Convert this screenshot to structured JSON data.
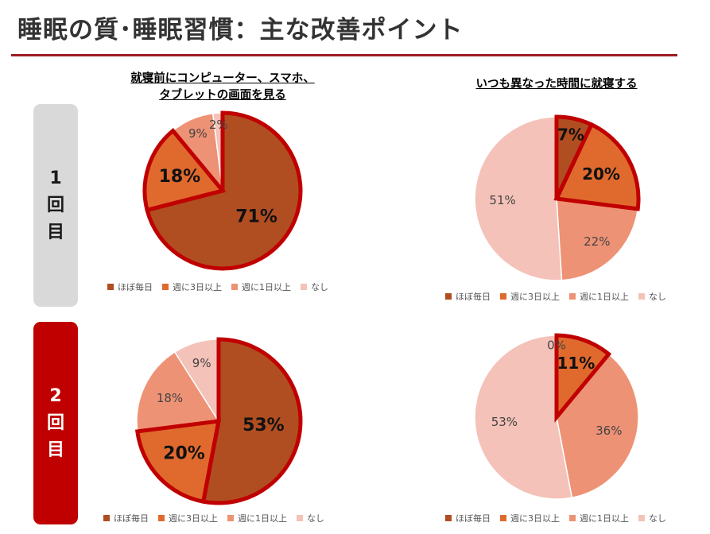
{
  "page": {
    "title": "睡眠の質･睡眠習慣：主な改善ポイント",
    "rounds": [
      {
        "l1": "1",
        "l2": "回",
        "l3": "目"
      },
      {
        "l1": "2",
        "l2": "回",
        "l3": "目"
      }
    ]
  },
  "colors": {
    "category_colors": [
      "#b04e22",
      "#e06a2e",
      "#ee9275",
      "#f4c2b8"
    ],
    "highlight_outline": "#c00000",
    "round1_badge": "#d9d9d9",
    "round2_badge": "#c00000"
  },
  "chart_titles": {
    "left_line1": "就寝前にコンピューター、スマホ、",
    "left_line2": "タブレットの画面を見る",
    "right": "いつも異なった時間に就寝する"
  },
  "legend_labels": [
    "ほぼ毎日",
    "週に3日以上",
    "週に1日以上",
    "なし"
  ],
  "chart_data": [
    {
      "type": "pie",
      "id": "screen-round1",
      "title": "就寝前にコンピューター、スマホ、タブレットの画面を見る",
      "round": "1回目",
      "categories": [
        "ほぼ毎日",
        "週に3日以上",
        "週に1日以上",
        "なし"
      ],
      "values": [
        71,
        18,
        9,
        2
      ],
      "labels": [
        "71%",
        "18%",
        "9%",
        "2%"
      ],
      "highlighted": [
        0,
        1
      ],
      "legend": "bottom"
    },
    {
      "type": "pie",
      "id": "bedtime-round1",
      "title": "いつも異なった時間に就寝する",
      "round": "1回目",
      "categories": [
        "ほぼ毎日",
        "週に3日以上",
        "週に1日以上",
        "なし"
      ],
      "values": [
        7,
        20,
        22,
        51
      ],
      "labels": [
        "7%",
        "20%",
        "22%",
        "51%"
      ],
      "highlighted": [
        0,
        1
      ],
      "legend": "bottom"
    },
    {
      "type": "pie",
      "id": "screen-round2",
      "title": "就寝前にコンピューター、スマホ、タブレットの画面を見る",
      "round": "2回目",
      "categories": [
        "ほぼ毎日",
        "週に3日以上",
        "週に1日以上",
        "なし"
      ],
      "values": [
        53,
        20,
        18,
        9
      ],
      "labels": [
        "53%",
        "20%",
        "18%",
        "9%"
      ],
      "highlighted": [
        0,
        1
      ],
      "legend": "bottom"
    },
    {
      "type": "pie",
      "id": "bedtime-round2",
      "title": "いつも異なった時間に就寝する",
      "round": "2回目",
      "categories": [
        "ほぼ毎日",
        "週に3日以上",
        "週に1日以上",
        "なし"
      ],
      "values": [
        0,
        11,
        36,
        53
      ],
      "labels": [
        "0%",
        "11%",
        "36%",
        "53%"
      ],
      "highlighted": [
        0,
        1
      ],
      "legend": "bottom"
    }
  ]
}
